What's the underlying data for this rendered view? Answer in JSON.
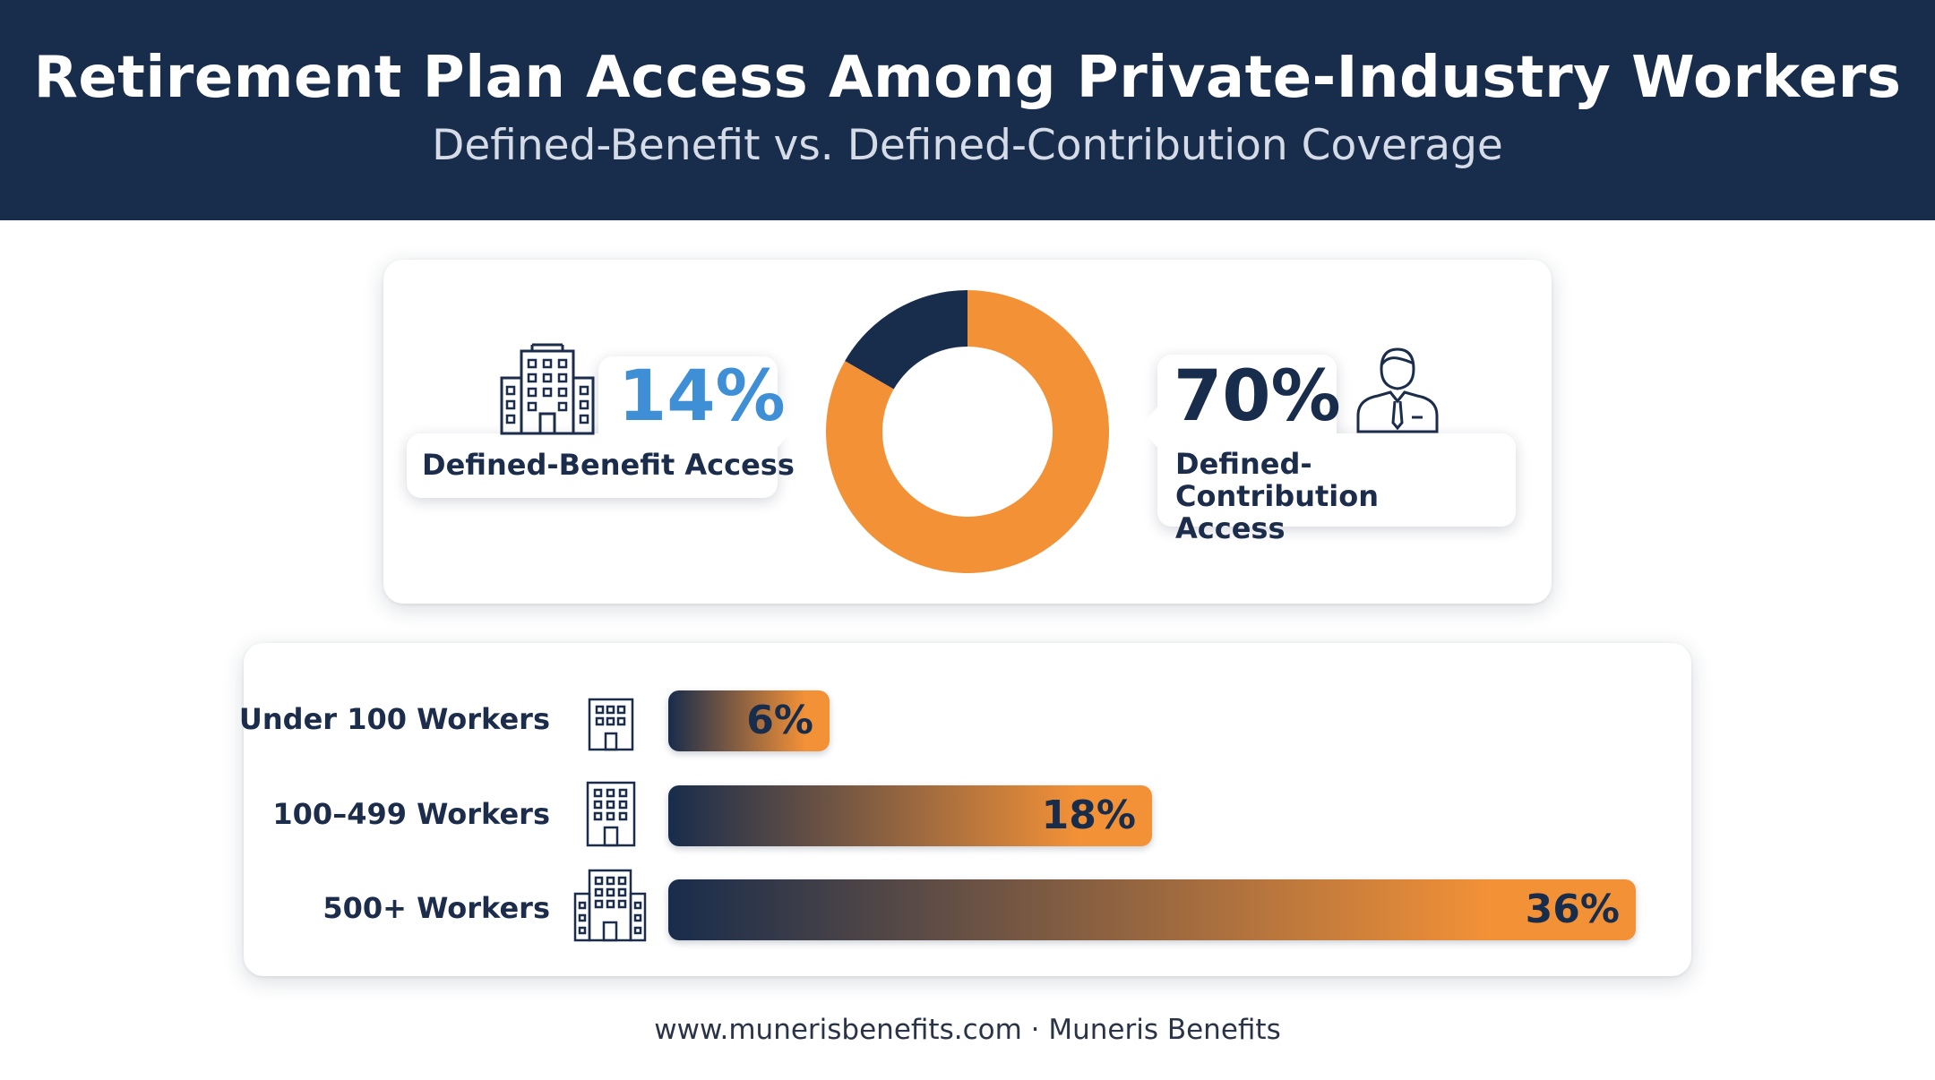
{
  "header": {
    "title": "Retirement Plan Access Among Private-Industry Workers",
    "subtitle": "Defined-Benefit vs. Defined-Contribution Coverage"
  },
  "colors": {
    "navy": "#182c4c",
    "orange": "#f39137",
    "blue_accent": "#3f8fd6"
  },
  "icons": {
    "defined_benefit": "office-building-icon",
    "defined_contribution": "businessman-icon",
    "bar_rows": "office-building-icon"
  },
  "chart_data": [
    {
      "type": "pie",
      "variant": "donut",
      "title": "",
      "callouts": [
        {
          "value_label": "14%",
          "label": "Defined-Benefit Access"
        },
        {
          "value_label": "70%",
          "label": "Defined-Contribution Access"
        }
      ],
      "slices": [
        {
          "label": "Defined-Contribution Access",
          "value": 70,
          "color": "#f39137"
        },
        {
          "label": "Defined-Benefit Access",
          "value": 14,
          "color": "#182c4c"
        }
      ],
      "legend": "none"
    },
    {
      "type": "bar",
      "orientation": "horizontal",
      "title": "",
      "categories": [
        "Under 100 Workers",
        "100–499 Workers",
        "500+ Workers"
      ],
      "values": [
        6,
        18,
        36
      ],
      "value_labels": [
        "6%",
        "18%",
        "36%"
      ],
      "xlim": [
        0,
        36
      ],
      "grid": false,
      "legend": "none"
    }
  ],
  "footer": {
    "text": "www.munerisbenefits.com · Muneris Benefits"
  }
}
